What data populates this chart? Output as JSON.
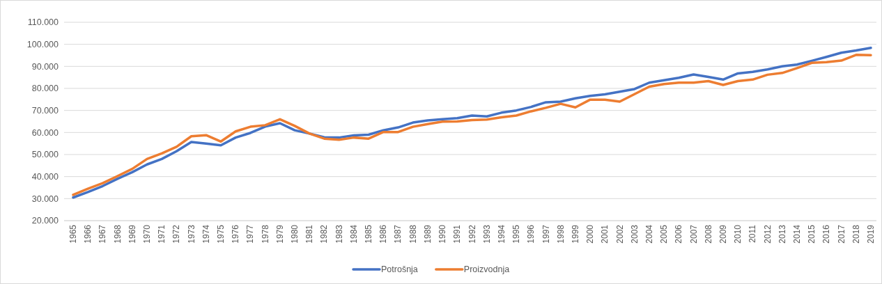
{
  "chart_data": {
    "type": "line",
    "categories": [
      "1965",
      "1966",
      "1967",
      "1968",
      "1969",
      "1970",
      "1971",
      "1972",
      "1973",
      "1974",
      "1975",
      "1976",
      "1977",
      "1978",
      "1979",
      "1980",
      "1981",
      "1982",
      "1983",
      "1984",
      "1985",
      "1986",
      "1987",
      "1988",
      "1989",
      "1990",
      "1991",
      "1992",
      "1993",
      "1994",
      "1995",
      "1996",
      "1997",
      "1998",
      "1999",
      "2000",
      "2001",
      "2002",
      "2003",
      "2004",
      "2005",
      "2006",
      "2007",
      "2008",
      "2009",
      "2010",
      "2011",
      "2012",
      "2013",
      "2014",
      "2015",
      "2016",
      "2017",
      "2018",
      "2019"
    ],
    "series": [
      {
        "name": "Potrošnja",
        "color": "#4472c4",
        "values": [
          30500,
          33000,
          35700,
          39000,
          42000,
          45500,
          48000,
          51500,
          55700,
          55000,
          54200,
          57700,
          59800,
          62700,
          64200,
          61000,
          59500,
          57800,
          57700,
          58700,
          59000,
          61000,
          62300,
          64500,
          65500,
          66000,
          66500,
          67700,
          67300,
          69000,
          70000,
          71600,
          73700,
          74000,
          75500,
          76600,
          77300,
          78500,
          79700,
          82600,
          83700,
          84800,
          86300,
          85200,
          84000,
          86800,
          87500,
          88600,
          90000,
          90800,
          92500,
          94300,
          96200,
          97200,
          98400
        ]
      },
      {
        "name": "Proizvodnja",
        "color": "#ed7d31",
        "values": [
          31700,
          34500,
          37000,
          40200,
          43500,
          48000,
          50500,
          53500,
          58300,
          58800,
          55900,
          60500,
          62600,
          63300,
          66000,
          63000,
          59500,
          57200,
          56700,
          57700,
          57200,
          60200,
          60200,
          62600,
          63800,
          64900,
          65000,
          65600,
          65900,
          66900,
          67700,
          69600,
          71200,
          73000,
          71400,
          74900,
          74900,
          74000,
          77400,
          80800,
          82000,
          82600,
          82600,
          83300,
          81600,
          83300,
          84000,
          86200,
          87000,
          89200,
          91600,
          91900,
          92600,
          95200,
          95100
        ]
      }
    ],
    "ylim": [
      20000,
      110000
    ],
    "yticks": [
      {
        "value": 20000,
        "label": "20.000"
      },
      {
        "value": 30000,
        "label": "30.000"
      },
      {
        "value": 40000,
        "label": "40.000"
      },
      {
        "value": 50000,
        "label": "50.000"
      },
      {
        "value": 60000,
        "label": "60.000"
      },
      {
        "value": 70000,
        "label": "70.000"
      },
      {
        "value": 80000,
        "label": "80.000"
      },
      {
        "value": 90000,
        "label": "90.000"
      },
      {
        "value": 100000,
        "label": "100.000"
      },
      {
        "value": 110000,
        "label": "110.000"
      }
    ],
    "grid": "y",
    "legend": "bottom",
    "line_style": "solid",
    "marker": "none"
  }
}
